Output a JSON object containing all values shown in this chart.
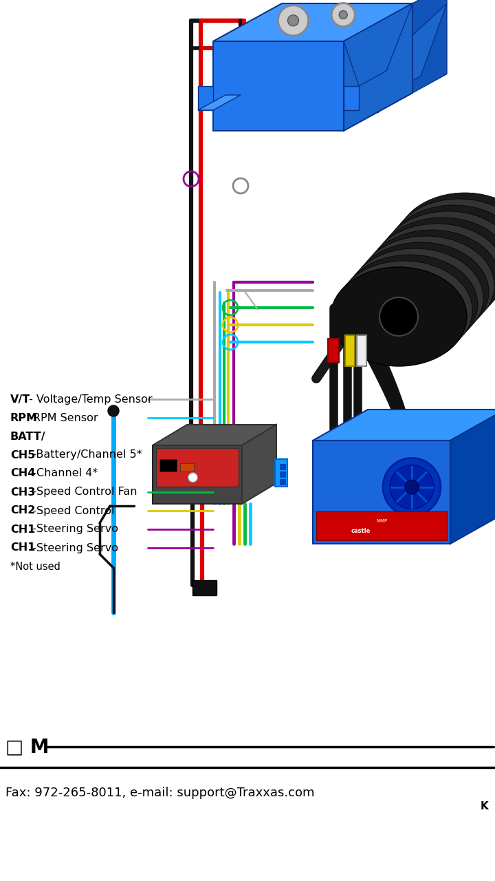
{
  "bg_color": "#ffffff",
  "legend_items": [
    {
      "label_bold": "V/T",
      "label_rest": " - Voltage/Temp Sensor",
      "wire_color": "#aaaaaa",
      "has_line": true
    },
    {
      "label_bold": "RPM",
      "label_rest": " -RPM Sensor",
      "wire_color": "#00ccff",
      "has_line": true
    },
    {
      "label_bold": "BATT/",
      "label_rest": "",
      "wire_color": null,
      "has_line": false
    },
    {
      "label_bold": "CH5",
      "label_rest": "  -Battery/Channel 5*",
      "wire_color": null,
      "has_line": false
    },
    {
      "label_bold": "CH4",
      "label_rest": "  -Channel 4*",
      "wire_color": null,
      "has_line": false
    },
    {
      "label_bold": "CH3",
      "label_rest": "  -Speed Control Fan",
      "wire_color": "#00bb44",
      "has_line": true
    },
    {
      "label_bold": "CH2",
      "label_rest": "  -Speed Control",
      "wire_color": "#ddcc00",
      "has_line": true
    },
    {
      "label_bold": "CH1",
      "label_rest": "  -Steering Servo",
      "wire_color": "#990099",
      "has_line": true
    },
    {
      "label_bold": "CH1",
      "label_rest": "  -Steering Servo",
      "wire_color": "#990099",
      "has_line": true
    },
    {
      "label_bold": null,
      "label_rest": "*Not used",
      "wire_color": null,
      "has_line": false
    }
  ],
  "footer_line1": "Fax: 972-265-8011, e-mail: support@Traxxas.com",
  "footer_om": "□ M",
  "footer_k": "K",
  "servo_color_top": "#4499ff",
  "servo_color_front": "#2277ee",
  "servo_color_side": "#1a66cc",
  "motor_color_dark": "#222222",
  "motor_color_mid": "#555555",
  "esc_color_blue": "#1a66dd",
  "rx_color_top": "#555555",
  "rx_color_front": "#222222",
  "rx_color_side": "#333333",
  "wire_red": "#dd0000",
  "wire_black": "#111111",
  "wire_gray": "#aaaaaa",
  "wire_cyan": "#00ccff",
  "wire_purple": "#990099",
  "wire_yellow": "#ddcc00",
  "wire_green": "#00bb44",
  "connector_green": "#00bb44",
  "connector_yellow": "#ddcc00",
  "connector_cyan": "#00ccff",
  "connector_purple": "#990099"
}
